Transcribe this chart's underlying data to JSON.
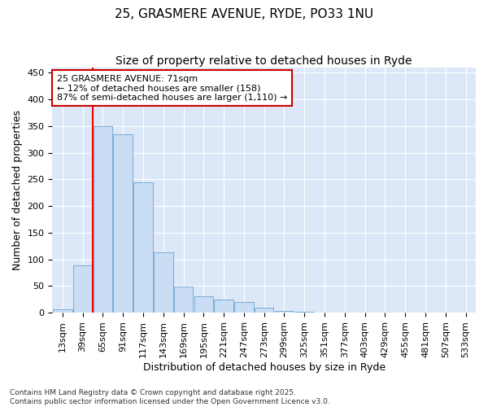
{
  "title1": "25, GRASMERE AVENUE, RYDE, PO33 1NU",
  "title2": "Size of property relative to detached houses in Ryde",
  "xlabel": "Distribution of detached houses by size in Ryde",
  "ylabel": "Number of detached properties",
  "categories": [
    "13sqm",
    "39sqm",
    "65sqm",
    "91sqm",
    "117sqm",
    "143sqm",
    "169sqm",
    "195sqm",
    "221sqm",
    "247sqm",
    "273sqm",
    "299sqm",
    "325sqm",
    "351sqm",
    "377sqm",
    "403sqm",
    "429sqm",
    "455sqm",
    "481sqm",
    "507sqm",
    "533sqm"
  ],
  "values": [
    6,
    88,
    350,
    335,
    245,
    113,
    49,
    31,
    25,
    20,
    9,
    3,
    1,
    0,
    0,
    0,
    0,
    0,
    0,
    0,
    0
  ],
  "bar_color": "#c9ddf5",
  "bar_edge_color": "#7bacd4",
  "red_line_index": 2,
  "annotation_line1": "25 GRASMERE AVENUE: 71sqm",
  "annotation_line2": "← 12% of detached houses are smaller (158)",
  "annotation_line3": "87% of semi-detached houses are larger (1,110) →",
  "annotation_box_color": "#ffffff",
  "annotation_box_edge": "#cc0000",
  "footer": "Contains HM Land Registry data © Crown copyright and database right 2025.\nContains public sector information licensed under the Open Government Licence v3.0.",
  "bg_color": "#ffffff",
  "plot_bg_color": "#dce8f8",
  "ylim": [
    0,
    460
  ],
  "yticks": [
    0,
    50,
    100,
    150,
    200,
    250,
    300,
    350,
    400,
    450
  ],
  "title1_fontsize": 11,
  "title2_fontsize": 10,
  "axis_label_fontsize": 9,
  "tick_fontsize": 8,
  "annotation_fontsize": 8,
  "footer_fontsize": 6.5
}
